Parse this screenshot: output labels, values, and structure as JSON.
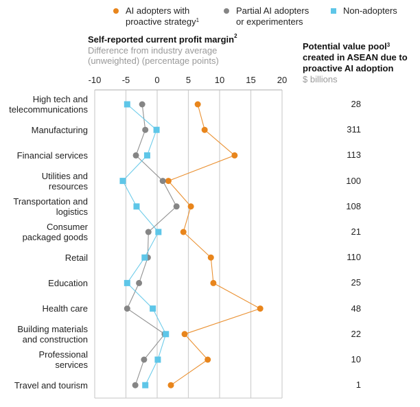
{
  "legend": [
    {
      "label": "AI adopters with\nproactive strategy",
      "sup": "1",
      "color": "#E8851C",
      "shape": "circle"
    },
    {
      "label": "Partial AI adopters\nor experimenters",
      "sup": "",
      "color": "#858585",
      "shape": "circle"
    },
    {
      "label": "Non-adopters",
      "sup": "",
      "color": "#5EC6E8",
      "shape": "square"
    }
  ],
  "axis_title": "Self-reported current profit margin",
  "axis_title_sup": "2",
  "axis_subtitle": "Difference from industry average (unweighted) (percentage points)",
  "value_pool": {
    "title": "Potential value pool",
    "title_sup": "3",
    "title_rest": "created in ASEAN due to proactive AI adoption",
    "unit": "$ billions"
  },
  "chart_data": {
    "type": "scatter",
    "title": "Self-reported current profit margin",
    "xlabel": "Difference from industry average (unweighted) (percentage points)",
    "xlim": [
      -10,
      20
    ],
    "xticks": [
      "-10",
      "-5",
      "0",
      "5",
      "10",
      "15",
      "20"
    ],
    "xtick_values": [
      -10,
      -5,
      0,
      5,
      10,
      15,
      20
    ],
    "grid": true,
    "legend_position": "top",
    "categories": [
      "High tech and\ntelecommunications",
      "Manufacturing",
      "Financial services",
      "Utilities and\nresources",
      "Transportation and\nlogistics",
      "Consumer\npackaged goods",
      "Retail",
      "Education",
      "Health care",
      "Building materials\nand construction",
      "Professional\nservices",
      "Travel and tourism"
    ],
    "series": [
      {
        "name": "AI adopters with proactive strategy",
        "color": "#E8851C",
        "shape": "circle",
        "values": [
          6.5,
          7.6,
          12.4,
          1.8,
          5.4,
          4.2,
          8.6,
          9.0,
          16.5,
          4.4,
          8.1,
          2.2
        ]
      },
      {
        "name": "Partial AI adopters or experimenters",
        "color": "#858585",
        "shape": "circle",
        "values": [
          -2.4,
          -1.9,
          -3.4,
          0.9,
          3.1,
          -1.4,
          -1.5,
          -2.9,
          -4.8,
          1.2,
          -2.1,
          -3.5
        ]
      },
      {
        "name": "Non-adopters",
        "color": "#5EC6E8",
        "shape": "square",
        "values": [
          -4.8,
          -0.1,
          -1.6,
          -5.5,
          -3.3,
          0.2,
          -2.0,
          -4.8,
          -0.7,
          1.4,
          0.1,
          -1.9
        ]
      }
    ],
    "value_pool_billions": [
      "28",
      "311",
      "113",
      "100",
      "108",
      "21",
      "110",
      "25",
      "48",
      "22",
      "10",
      "1"
    ]
  }
}
